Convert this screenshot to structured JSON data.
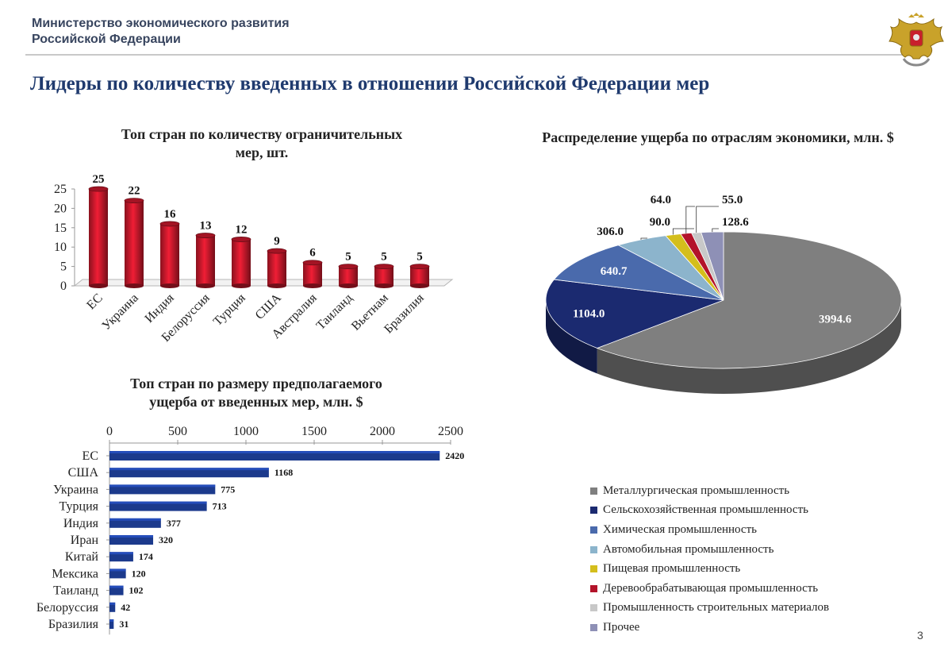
{
  "header": {
    "ministry_line1": "Министерство экономического развития",
    "ministry_line2": "Российской Федерации",
    "emblem": "double-headed-eagle-emblem"
  },
  "page_title": "Лидеры по количеству введенных в отношении Российской Федерации мер",
  "page_number": "3",
  "chart_data": [
    {
      "id": "measures",
      "type": "bar",
      "title_line1": "Топ стран по количеству ограничительных",
      "title_line2": "мер, шт.",
      "categories": [
        "ЕС",
        "Украина",
        "Индия",
        "Белоруссия",
        "Турция",
        "США",
        "Австралия",
        "Таиланд",
        "Вьетнам",
        "Бразилия"
      ],
      "values": [
        25,
        22,
        16,
        13,
        12,
        9,
        6,
        5,
        5,
        5
      ],
      "ylim": [
        0,
        25
      ],
      "yticks": [
        "0",
        "5",
        "10",
        "15",
        "20",
        "25"
      ],
      "xlabel": "",
      "ylabel": "",
      "color": "#c0182a"
    },
    {
      "id": "damage",
      "type": "bar",
      "orientation": "horizontal",
      "title_line1": "Топ стран по размеру предполагаемого",
      "title_line2": "ущерба от введенных мер, млн. $",
      "categories": [
        "ЕС",
        "США",
        "Украина",
        "Турция",
        "Индия",
        "Иран",
        "Китай",
        "Мексика",
        "Таиланд",
        "Белоруссия",
        "Бразилия"
      ],
      "values": [
        2420,
        1168,
        775,
        713,
        377,
        320,
        174,
        120,
        102,
        42,
        31
      ],
      "xlim": [
        0,
        2500
      ],
      "xticks": [
        "0",
        "500",
        "1000",
        "1500",
        "2000",
        "2500"
      ],
      "xlabel": "",
      "ylabel": "",
      "color": "#1c3a8c"
    },
    {
      "id": "sectors",
      "type": "pie",
      "title": "Распределение ущерба по отраслям экономики, млн. $",
      "labels": [
        "Металлургическая промышленность",
        "Сельскохозяйственная промышленность",
        "Химическая промышленность",
        "Автомобильная промышленность",
        "Пищевая промышленность",
        "Деревообрабатывающая промышленность",
        "Промышленность строительных материалов",
        "Прочее"
      ],
      "values": [
        3994.6,
        1104.0,
        640.7,
        306.0,
        90.0,
        64.0,
        55.0,
        128.6
      ],
      "value_labels": [
        "3994.6",
        "1104.0",
        "640.7",
        "306.0",
        "90.0",
        "64.0",
        "55.0",
        "128.6"
      ],
      "colors": [
        "#7f7f7f",
        "#1b2a70",
        "#4a6aac",
        "#8cb4cc",
        "#d4be1c",
        "#b3132a",
        "#c8c8c8",
        "#8e90b6"
      ],
      "legend_position": "bottom"
    }
  ]
}
